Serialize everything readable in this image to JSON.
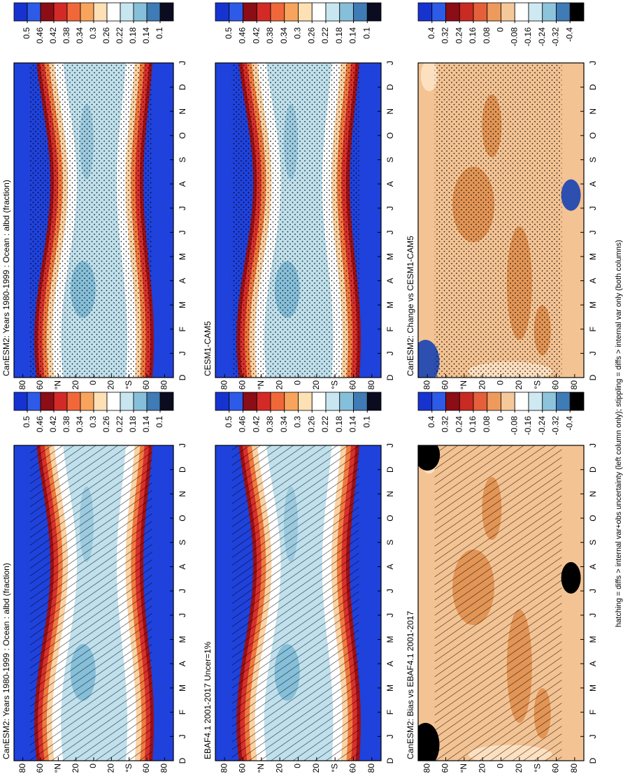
{
  "chart_data": [
    {
      "type": "heatmap",
      "title": "CanESM2: Years 1980-1999 : Ocean : albd (fraction)",
      "overlay": "hatching",
      "categories": [
        "D",
        "J",
        "F",
        "M",
        "A",
        "M",
        "J",
        "J",
        "A",
        "S",
        "O",
        "N",
        "D",
        "J"
      ],
      "ylim": [
        -90,
        90
      ],
      "yticks": [
        80,
        60,
        {
          "value": 40,
          "label": "°N"
        },
        20,
        0,
        {
          "value": -20,
          "label": "20"
        },
        {
          "value": -40,
          "label": "°S"
        },
        {
          "value": -60,
          "label": "60"
        },
        {
          "value": -80,
          "label": "80"
        }
      ],
      "colorbar_ticks": [
        0.5,
        0.46,
        0.42,
        0.38,
        0.34,
        0.3,
        0.26,
        0.22,
        0.18,
        0.14,
        0.1
      ]
    },
    {
      "type": "heatmap",
      "title": "CanESM2: Years 1980-1999 : Ocean : albd (fraction)",
      "overlay": "stippling",
      "categories": [
        "D",
        "J",
        "F",
        "M",
        "A",
        "M",
        "J",
        "J",
        "A",
        "S",
        "O",
        "N",
        "D",
        "J"
      ],
      "ylim": [
        -90,
        90
      ],
      "yticks": [
        80,
        60,
        {
          "value": 40,
          "label": "°N"
        },
        20,
        0,
        {
          "value": -20,
          "label": "20"
        },
        {
          "value": -40,
          "label": "°S"
        },
        {
          "value": -60,
          "label": "60"
        },
        {
          "value": -80,
          "label": "80"
        }
      ],
      "colorbar_ticks": [
        0.5,
        0.46,
        0.42,
        0.38,
        0.34,
        0.3,
        0.26,
        0.22,
        0.18,
        0.14,
        0.1
      ]
    },
    {
      "type": "heatmap",
      "title": "EBAF4.1 2001-2017 Uncer=1%",
      "overlay": "hatching",
      "categories": [
        "D",
        "J",
        "F",
        "M",
        "A",
        "M",
        "J",
        "J",
        "A",
        "S",
        "O",
        "N",
        "D",
        "J"
      ],
      "ylim": [
        -90,
        90
      ],
      "yticks": [
        80,
        60,
        {
          "value": 40,
          "label": "°N"
        },
        20,
        0,
        {
          "value": -20,
          "label": "20"
        },
        {
          "value": -40,
          "label": "°S"
        },
        {
          "value": -60,
          "label": "60"
        },
        {
          "value": -80,
          "label": "80"
        }
      ],
      "colorbar_ticks": [
        0.5,
        0.46,
        0.42,
        0.38,
        0.34,
        0.3,
        0.26,
        0.22,
        0.18,
        0.14,
        0.1
      ]
    },
    {
      "type": "heatmap",
      "title": "CESM1-CAM5",
      "overlay": "stippling",
      "categories": [
        "D",
        "J",
        "F",
        "M",
        "A",
        "M",
        "J",
        "J",
        "A",
        "S",
        "O",
        "N",
        "D",
        "J"
      ],
      "ylim": [
        -90,
        90
      ],
      "yticks": [
        80,
        60,
        {
          "value": 40,
          "label": "°N"
        },
        20,
        0,
        {
          "value": -20,
          "label": "20"
        },
        {
          "value": -40,
          "label": "°S"
        },
        {
          "value": -60,
          "label": "60"
        },
        {
          "value": -80,
          "label": "80"
        }
      ],
      "colorbar_ticks": [
        0.5,
        0.46,
        0.42,
        0.38,
        0.34,
        0.3,
        0.26,
        0.22,
        0.18,
        0.14,
        0.1
      ]
    },
    {
      "type": "heatmap",
      "title": "CanESM2: Bias vs EBAF4.1 2001-2017",
      "overlay": "hatching",
      "categories": [
        "D",
        "J",
        "F",
        "M",
        "A",
        "M",
        "J",
        "J",
        "A",
        "S",
        "O",
        "N",
        "D",
        "J"
      ],
      "ylim": [
        -90,
        90
      ],
      "yticks": [
        80,
        60,
        {
          "value": 40,
          "label": "°N"
        },
        20,
        0,
        {
          "value": -20,
          "label": "20"
        },
        {
          "value": -40,
          "label": "°S"
        },
        {
          "value": -60,
          "label": "60"
        },
        {
          "value": -80,
          "label": "80"
        }
      ],
      "colorbar_ticks": [
        0.4,
        0.32,
        0.24,
        0.16,
        0.08,
        0,
        -0.08,
        -0.16,
        -0.24,
        -0.32,
        -0.4
      ]
    },
    {
      "type": "heatmap",
      "title": "CanESM2: Change vs CESM1-CAM5",
      "overlay": "stippling",
      "categories": [
        "D",
        "J",
        "F",
        "M",
        "A",
        "M",
        "J",
        "J",
        "A",
        "S",
        "O",
        "N",
        "D",
        "J"
      ],
      "ylim": [
        -90,
        90
      ],
      "yticks": [
        80,
        60,
        {
          "value": 40,
          "label": "°N"
        },
        20,
        0,
        {
          "value": -20,
          "label": "20"
        },
        {
          "value": -40,
          "label": "°S"
        },
        {
          "value": -60,
          "label": "60"
        },
        {
          "value": -80,
          "label": "80"
        }
      ],
      "colorbar_ticks": [
        0.4,
        0.32,
        0.24,
        0.16,
        0.08,
        0,
        -0.08,
        -0.16,
        -0.24,
        -0.32,
        -0.4
      ]
    }
  ],
  "footnote": "hatching = diffs > internal var+obs uncertainty (left column only); stippling = diffs > internal var only (both columns)"
}
